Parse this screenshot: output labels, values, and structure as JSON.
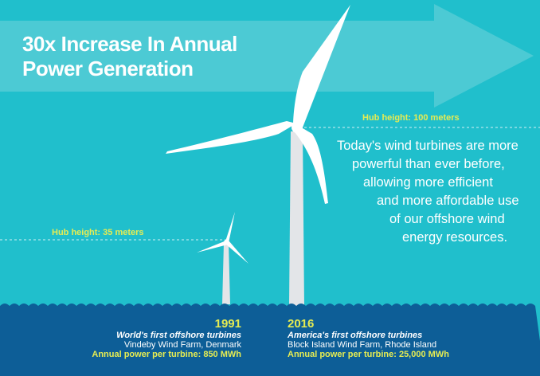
{
  "title": [
    "30x Increase In Annual",
    "Power Generation"
  ],
  "hub_small": "Hub height: 35 meters",
  "hub_large": "Hub height: 100 meters",
  "paragraph": [
    "Today's wind turbines are more",
    "powerful than ever before,",
    "allowing more efficient",
    "and more affordable use",
    "of our offshore wind",
    "energy resources."
  ],
  "left": {
    "year": "1991",
    "subtitle": "World's first offshore turbines",
    "location": "Vindeby Wind Farm, Denmark",
    "power": "Annual power per turbine: 850 MWh"
  },
  "right": {
    "year": "2016",
    "subtitle": "America's first offshore turbines",
    "location": "Block Island Wind Farm, Rhode Island",
    "power": "Annual power per turbine: 25,000 MWh"
  },
  "colors": {
    "sky": "#20bfcc",
    "sea": "#0d5e97",
    "accent": "#e6ec52",
    "arrow": "#4ccad4"
  }
}
